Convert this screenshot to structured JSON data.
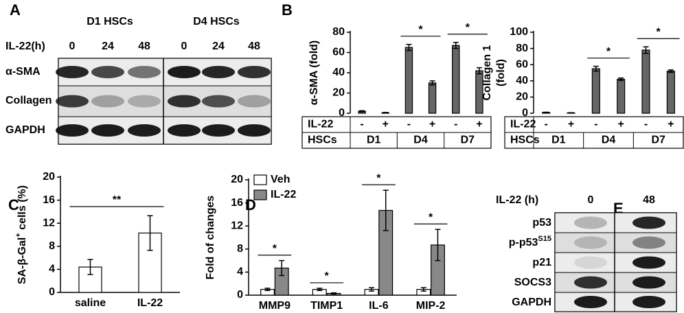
{
  "panel_labels": [
    "A",
    "B",
    "C",
    "D",
    "E"
  ],
  "blot_a": {
    "groups": [
      "D1 HSCs",
      "D4 HSCs"
    ],
    "treatment_label": "IL-22(h)",
    "times": [
      "0",
      "24",
      "48",
      "0",
      "24",
      "48"
    ],
    "rows": [
      "α-SMA",
      "Collagen",
      "GAPDH"
    ]
  },
  "blot_e": {
    "treatment_label": "IL-22 (h)",
    "times": [
      "0",
      "48"
    ],
    "rows": [
      {
        "text": "p53"
      },
      {
        "text": "p-p53",
        "sup": "S15"
      },
      {
        "text": "p21"
      },
      {
        "text": "SOCS3"
      },
      {
        "text": "GAPDH"
      }
    ]
  },
  "chart_data": [
    {
      "type": "bar",
      "ylabel_lines": [
        "α-SMA (fold)"
      ],
      "row_labels": [
        "IL-22",
        "HSCs"
      ],
      "categories": [
        "-",
        "+",
        "-",
        "+",
        "-",
        "+"
      ],
      "groups": [
        "D1",
        "D4",
        "D7"
      ],
      "values": [
        2,
        0.5,
        65,
        30,
        67,
        42
      ],
      "errors": [
        0.5,
        0.3,
        3,
        2,
        3,
        3
      ],
      "color": "#666666",
      "ylim": [
        0,
        80
      ],
      "yticks": [
        0,
        20,
        40,
        60,
        80
      ],
      "annotations": [
        "*",
        "*"
      ]
    },
    {
      "type": "bar",
      "ylabel_lines": [
        "Collagen 1",
        "(fold)"
      ],
      "row_labels": [
        "IL-22",
        "HSCs"
      ],
      "categories": [
        "-",
        "+",
        "-",
        "+",
        "-",
        "+"
      ],
      "groups": [
        "D1",
        "D4",
        "D7"
      ],
      "values": [
        1,
        0.5,
        55,
        42,
        78,
        52
      ],
      "errors": [
        0.3,
        0.2,
        3,
        1.5,
        4,
        1.5
      ],
      "color": "#666666",
      "ylim": [
        0,
        100
      ],
      "yticks": [
        0,
        20,
        40,
        60,
        80,
        100
      ],
      "annotations": [
        "*",
        "*"
      ]
    },
    {
      "type": "bar",
      "ylabel": "SA-β-Gal",
      "ylabel_sup": "+",
      "ylabel_rest": " cells (%)",
      "categories": [
        "saline",
        "IL-22"
      ],
      "values": [
        4.4,
        10.3
      ],
      "errors": [
        1.3,
        3.0
      ],
      "color": "#ffffff",
      "ylim": [
        0,
        20
      ],
      "yticks": [
        0,
        4,
        8,
        12,
        16,
        20
      ],
      "annotations": [
        "**"
      ]
    },
    {
      "type": "grouped-bar",
      "ylabel": "Fold of changes",
      "categories": [
        "MMP9",
        "TIMP1",
        "IL-6",
        "MIP-2"
      ],
      "series": [
        {
          "name": "Veh",
          "color": "#ffffff",
          "values": [
            1,
            1,
            1,
            1
          ],
          "errors": [
            0.2,
            0.2,
            0.3,
            0.3
          ]
        },
        {
          "name": "IL-22",
          "color": "#888888",
          "values": [
            4.7,
            0.3,
            14.7,
            8.7
          ],
          "errors": [
            1.3,
            0.1,
            3.5,
            2.7
          ]
        }
      ],
      "ylim": [
        0,
        20
      ],
      "yticks": [
        0,
        4,
        8,
        12,
        16,
        20
      ],
      "annotations": [
        "*",
        "*",
        "*",
        "*"
      ]
    }
  ]
}
